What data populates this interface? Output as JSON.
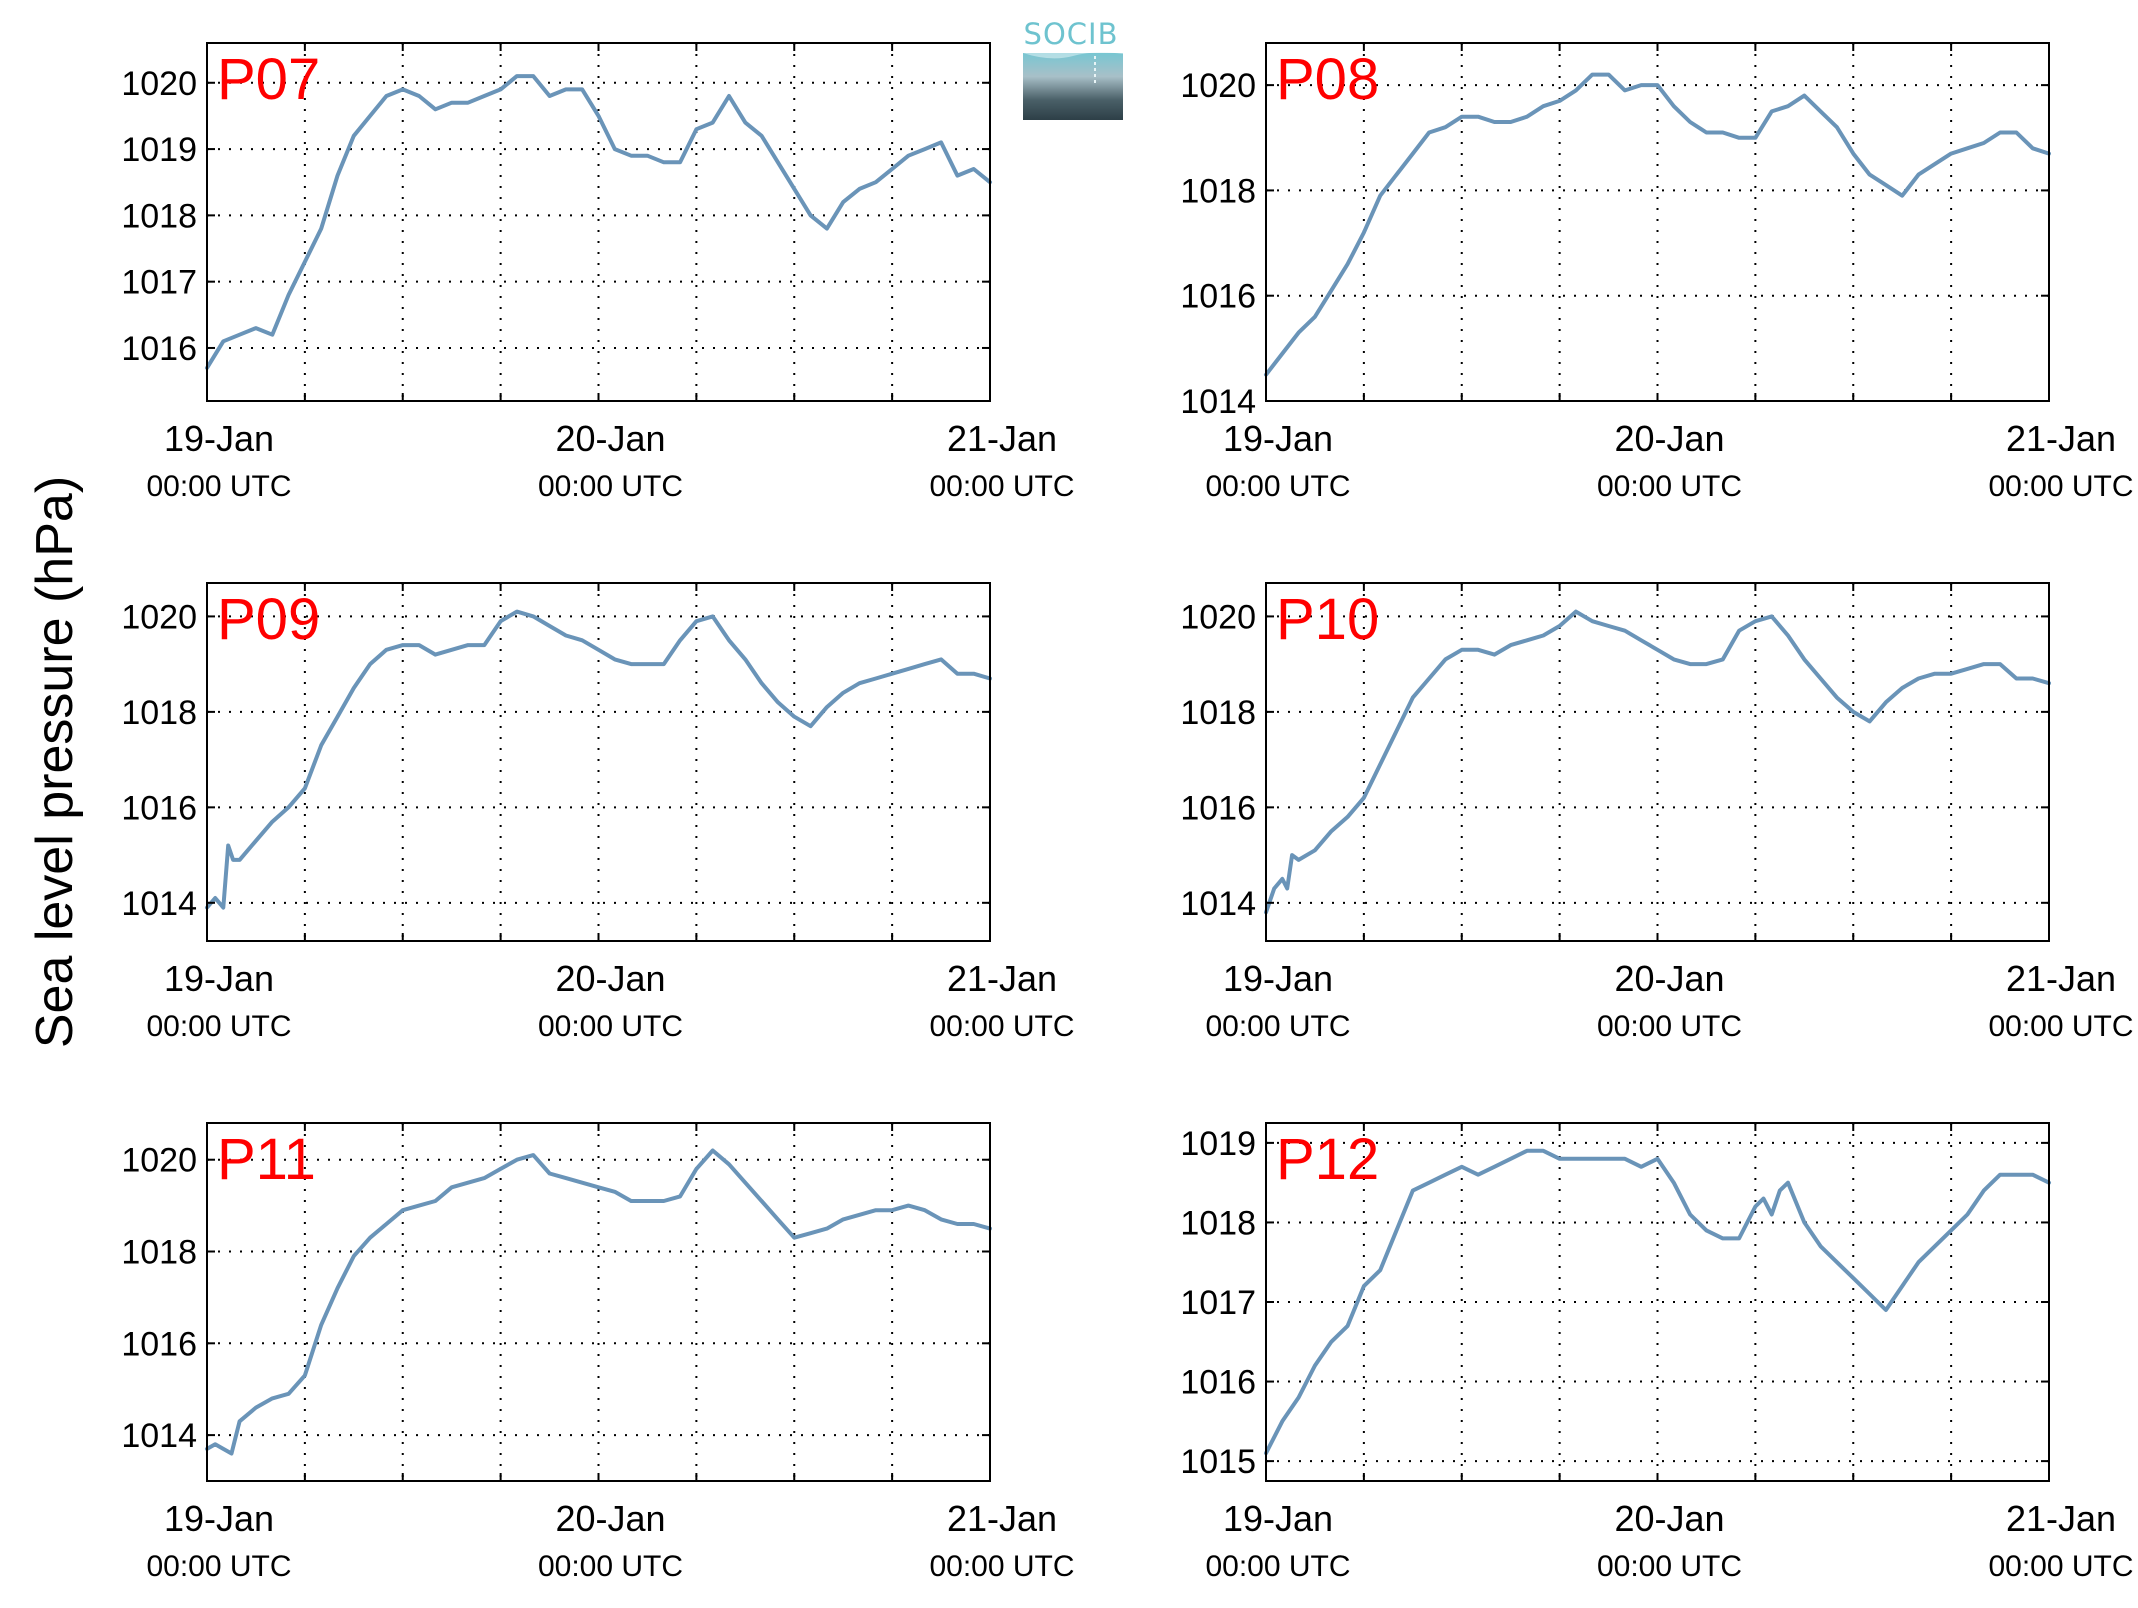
{
  "figure": {
    "ylabel": "Sea level pressure (hPa)",
    "logo_text": "SOCIB",
    "colors": {
      "line": "#6a94b8",
      "panel_label": "#ff0000",
      "axes": "#000000",
      "grid": "#000000"
    }
  },
  "chart_data": [
    {
      "type": "line",
      "panel_label": "P07",
      "xlim": [
        "19-Jan 00:00 UTC",
        "21-Jan 00:00 UTC"
      ],
      "x_ticks": [
        {
          "date": "19-Jan",
          "time": "00:00 UTC"
        },
        {
          "date": "20-Jan",
          "time": "00:00 UTC"
        },
        {
          "date": "21-Jan",
          "time": "00:00 UTC"
        }
      ],
      "ylim": [
        1015.2,
        1020.6
      ],
      "y_ticks": [
        1016,
        1017,
        1018,
        1019,
        1020
      ],
      "grid": true,
      "series": [
        {
          "x_hours": [
            0,
            1,
            2,
            3,
            4,
            5,
            6,
            7,
            8,
            9,
            10,
            11,
            12,
            13,
            14,
            15,
            16,
            17,
            18,
            19,
            20,
            21,
            22,
            23,
            24,
            25,
            26,
            27,
            28,
            29,
            30,
            31,
            32,
            33,
            34,
            35,
            36,
            37,
            38,
            39,
            40,
            41,
            42,
            43,
            44,
            45,
            46,
            47,
            48
          ],
          "values": [
            1015.7,
            1016.1,
            1016.2,
            1016.3,
            1016.2,
            1016.8,
            1017.3,
            1017.8,
            1018.6,
            1019.2,
            1019.5,
            1019.8,
            1019.9,
            1019.8,
            1019.6,
            1019.7,
            1019.7,
            1019.8,
            1019.9,
            1020.1,
            1020.1,
            1019.8,
            1019.9,
            1019.9,
            1019.5,
            1019.0,
            1018.9,
            1018.9,
            1018.8,
            1018.8,
            1019.3,
            1019.4,
            1019.8,
            1019.4,
            1019.2,
            1018.8,
            1018.4,
            1018.0,
            1017.8,
            1018.2,
            1018.4,
            1018.5,
            1018.7,
            1018.9,
            1019.0,
            1019.1,
            1018.6,
            1018.7,
            1018.5
          ]
        }
      ]
    },
    {
      "type": "line",
      "panel_label": "P08",
      "xlim": [
        "19-Jan 00:00 UTC",
        "21-Jan 00:00 UTC"
      ],
      "x_ticks": [
        {
          "date": "19-Jan",
          "time": "00:00 UTC"
        },
        {
          "date": "20-Jan",
          "time": "00:00 UTC"
        },
        {
          "date": "21-Jan",
          "time": "00:00 UTC"
        }
      ],
      "ylim": [
        1014,
        1020.8
      ],
      "y_ticks": [
        1014,
        1016,
        1018,
        1020
      ],
      "grid": true,
      "series": [
        {
          "x_hours": [
            0,
            1,
            2,
            3,
            4,
            5,
            6,
            7,
            8,
            9,
            10,
            11,
            12,
            13,
            14,
            15,
            16,
            17,
            18,
            19,
            20,
            21,
            22,
            23,
            24,
            25,
            26,
            27,
            28,
            29,
            30,
            31,
            32,
            33,
            34,
            35,
            36,
            37,
            38,
            39,
            40,
            41,
            42,
            43,
            44,
            45,
            46,
            47,
            48
          ],
          "values": [
            1014.5,
            1014.9,
            1015.3,
            1015.6,
            1016.1,
            1016.6,
            1017.2,
            1017.9,
            1018.3,
            1018.7,
            1019.1,
            1019.2,
            1019.4,
            1019.4,
            1019.3,
            1019.3,
            1019.4,
            1019.6,
            1019.7,
            1019.9,
            1020.2,
            1020.2,
            1019.9,
            1020.0,
            1020.0,
            1019.6,
            1019.3,
            1019.1,
            1019.1,
            1019.0,
            1019.0,
            1019.5,
            1019.6,
            1019.8,
            1019.5,
            1019.2,
            1018.7,
            1018.3,
            1018.1,
            1017.9,
            1018.3,
            1018.5,
            1018.7,
            1018.8,
            1018.9,
            1019.1,
            1019.1,
            1018.8,
            1018.7
          ]
        }
      ]
    },
    {
      "type": "line",
      "panel_label": "P09",
      "xlim": [
        "19-Jan 00:00 UTC",
        "21-Jan 00:00 UTC"
      ],
      "x_ticks": [
        {
          "date": "19-Jan",
          "time": "00:00 UTC"
        },
        {
          "date": "20-Jan",
          "time": "00:00 UTC"
        },
        {
          "date": "21-Jan",
          "time": "00:00 UTC"
        }
      ],
      "ylim": [
        1013.2,
        1020.7
      ],
      "y_ticks": [
        1014,
        1016,
        1018,
        1020
      ],
      "grid": true,
      "series": [
        {
          "x_hours": [
            0,
            0.5,
            1,
            1.3,
            1.6,
            2,
            3,
            4,
            5,
            6,
            7,
            8,
            9,
            10,
            11,
            12,
            13,
            14,
            15,
            16,
            17,
            18,
            19,
            20,
            21,
            22,
            23,
            24,
            25,
            26,
            27,
            28,
            29,
            30,
            31,
            32,
            33,
            34,
            35,
            36,
            37,
            38,
            39,
            40,
            41,
            42,
            43,
            44,
            45,
            46,
            47,
            48
          ],
          "values": [
            1013.9,
            1014.1,
            1013.9,
            1015.2,
            1014.9,
            1014.9,
            1015.3,
            1015.7,
            1016.0,
            1016.4,
            1017.3,
            1017.9,
            1018.5,
            1019.0,
            1019.3,
            1019.4,
            1019.4,
            1019.2,
            1019.3,
            1019.4,
            1019.4,
            1019.9,
            1020.1,
            1020.0,
            1019.8,
            1019.6,
            1019.5,
            1019.3,
            1019.1,
            1019.0,
            1019.0,
            1019.0,
            1019.5,
            1019.9,
            1020.0,
            1019.5,
            1019.1,
            1018.6,
            1018.2,
            1017.9,
            1017.7,
            1018.1,
            1018.4,
            1018.6,
            1018.7,
            1018.8,
            1018.9,
            1019.0,
            1019.1,
            1018.8,
            1018.8,
            1018.7
          ]
        }
      ]
    },
    {
      "type": "line",
      "panel_label": "P10",
      "xlim": [
        "19-Jan 00:00 UTC",
        "21-Jan 00:00 UTC"
      ],
      "x_ticks": [
        {
          "date": "19-Jan",
          "time": "00:00 UTC"
        },
        {
          "date": "20-Jan",
          "time": "00:00 UTC"
        },
        {
          "date": "21-Jan",
          "time": "00:00 UTC"
        }
      ],
      "ylim": [
        1013.2,
        1020.7
      ],
      "y_ticks": [
        1014,
        1016,
        1018,
        1020
      ],
      "grid": true,
      "series": [
        {
          "x_hours": [
            0,
            0.5,
            1,
            1.3,
            1.6,
            2,
            3,
            4,
            5,
            6,
            7,
            8,
            9,
            10,
            11,
            12,
            13,
            14,
            15,
            16,
            17,
            18,
            19,
            20,
            21,
            22,
            23,
            24,
            25,
            26,
            27,
            28,
            29,
            30,
            31,
            32,
            33,
            34,
            35,
            36,
            37,
            38,
            39,
            40,
            41,
            42,
            43,
            44,
            45,
            46,
            47,
            48
          ],
          "values": [
            1013.8,
            1014.3,
            1014.5,
            1014.3,
            1015.0,
            1014.9,
            1015.1,
            1015.5,
            1015.8,
            1016.2,
            1016.9,
            1017.6,
            1018.3,
            1018.7,
            1019.1,
            1019.3,
            1019.3,
            1019.2,
            1019.4,
            1019.5,
            1019.6,
            1019.8,
            1020.1,
            1019.9,
            1019.8,
            1019.7,
            1019.5,
            1019.3,
            1019.1,
            1019.0,
            1019.0,
            1019.1,
            1019.7,
            1019.9,
            1020.0,
            1019.6,
            1019.1,
            1018.7,
            1018.3,
            1018.0,
            1017.8,
            1018.2,
            1018.5,
            1018.7,
            1018.8,
            1018.8,
            1018.9,
            1019.0,
            1019.0,
            1018.7,
            1018.7,
            1018.6
          ]
        }
      ]
    },
    {
      "type": "line",
      "panel_label": "P11",
      "xlim": [
        "19-Jan 00:00 UTC",
        "21-Jan 00:00 UTC"
      ],
      "x_ticks": [
        {
          "date": "19-Jan",
          "time": "00:00 UTC"
        },
        {
          "date": "20-Jan",
          "time": "00:00 UTC"
        },
        {
          "date": "21-Jan",
          "time": "00:00 UTC"
        }
      ],
      "ylim": [
        1013.0,
        1020.8
      ],
      "y_ticks": [
        1014,
        1016,
        1018,
        1020
      ],
      "grid": true,
      "series": [
        {
          "x_hours": [
            0,
            0.5,
            1,
            1.5,
            2,
            3,
            4,
            5,
            6,
            7,
            8,
            9,
            10,
            11,
            12,
            13,
            14,
            15,
            16,
            17,
            18,
            19,
            20,
            21,
            22,
            23,
            24,
            25,
            26,
            27,
            28,
            29,
            30,
            31,
            32,
            33,
            34,
            35,
            36,
            37,
            38,
            39,
            40,
            41,
            42,
            43,
            44,
            45,
            46,
            47,
            48
          ],
          "values": [
            1013.7,
            1013.8,
            1013.7,
            1013.6,
            1014.3,
            1014.6,
            1014.8,
            1014.9,
            1015.3,
            1016.4,
            1017.2,
            1017.9,
            1018.3,
            1018.6,
            1018.9,
            1019.0,
            1019.1,
            1019.4,
            1019.5,
            1019.6,
            1019.8,
            1020.0,
            1020.1,
            1019.7,
            1019.6,
            1019.5,
            1019.4,
            1019.3,
            1019.1,
            1019.1,
            1019.1,
            1019.2,
            1019.8,
            1020.2,
            1019.9,
            1019.5,
            1019.1,
            1018.7,
            1018.3,
            1018.4,
            1018.5,
            1018.7,
            1018.8,
            1018.9,
            1018.9,
            1019.0,
            1018.9,
            1018.7,
            1018.6,
            1018.6,
            1018.5
          ]
        }
      ]
    },
    {
      "type": "line",
      "panel_label": "P12",
      "xlim": [
        "19-Jan 00:00 UTC",
        "21-Jan 00:00 UTC"
      ],
      "x_ticks": [
        {
          "date": "19-Jan",
          "time": "00:00 UTC"
        },
        {
          "date": "20-Jan",
          "time": "00:00 UTC"
        },
        {
          "date": "21-Jan",
          "time": "00:00 UTC"
        }
      ],
      "ylim": [
        1014.75,
        1019.25
      ],
      "y_ticks": [
        1015,
        1016,
        1017,
        1018,
        1019
      ],
      "grid": true,
      "series": [
        {
          "x_hours": [
            0,
            1,
            2,
            3,
            4,
            5,
            6,
            7,
            8,
            9,
            10,
            11,
            12,
            13,
            14,
            15,
            16,
            17,
            18,
            19,
            20,
            21,
            22,
            23,
            24,
            25,
            26,
            27,
            28,
            29,
            30,
            30.5,
            31,
            31.5,
            32,
            33,
            34,
            35,
            36,
            37,
            38,
            39,
            40,
            41,
            42,
            43,
            44,
            45,
            46,
            47,
            48
          ],
          "values": [
            1015.1,
            1015.5,
            1015.8,
            1016.2,
            1016.5,
            1016.7,
            1017.2,
            1017.4,
            1017.9,
            1018.4,
            1018.5,
            1018.6,
            1018.7,
            1018.6,
            1018.7,
            1018.8,
            1018.9,
            1018.9,
            1018.8,
            1018.8,
            1018.8,
            1018.8,
            1018.8,
            1018.7,
            1018.8,
            1018.5,
            1018.1,
            1017.9,
            1017.8,
            1017.8,
            1018.2,
            1018.3,
            1018.1,
            1018.4,
            1018.5,
            1018.0,
            1017.7,
            1017.5,
            1017.3,
            1017.1,
            1016.9,
            1017.2,
            1017.5,
            1017.7,
            1017.9,
            1018.1,
            1018.4,
            1018.6,
            1018.6,
            1018.6,
            1018.5
          ]
        }
      ]
    }
  ]
}
